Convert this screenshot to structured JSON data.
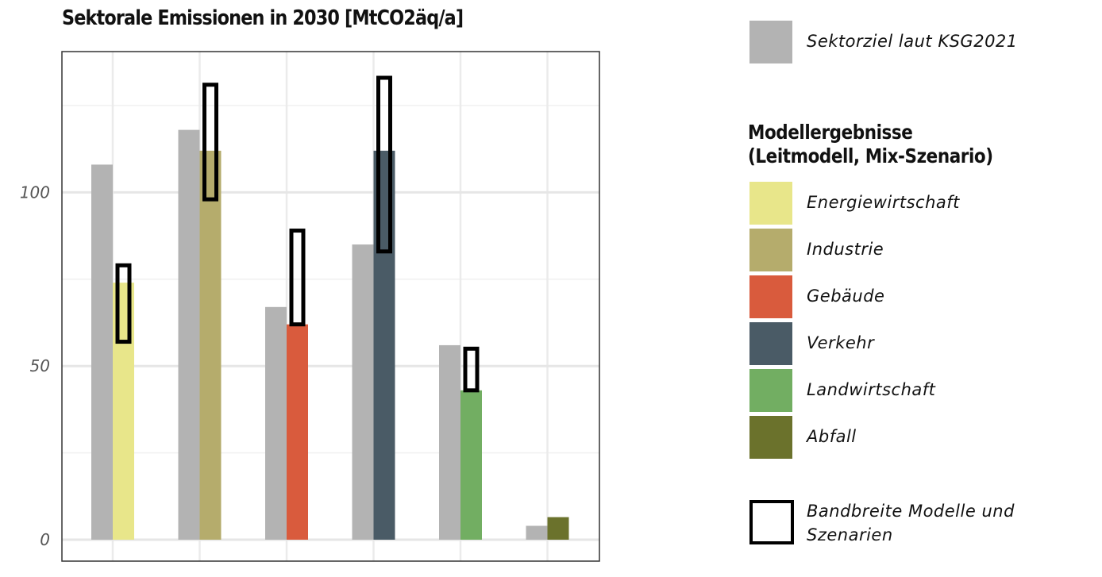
{
  "chart_data": {
    "type": "bar",
    "title": "Sektorale Emissionen in 2030 [MtCO2äq/a]",
    "xlabel": "",
    "ylabel": "",
    "ylim": [
      0,
      130
    ],
    "yticks": [
      0,
      50,
      100
    ],
    "grid": true,
    "legend_position": "right",
    "categories": [
      "Energiewirtschaft",
      "Industrie",
      "Gebäude",
      "Verkehr",
      "Landwirtschaft",
      "Abfall"
    ],
    "colors": [
      "#e8e68a",
      "#b5ac6c",
      "#d95b3d",
      "#4a5b66",
      "#72ae62",
      "#6b722c"
    ],
    "target_color": "#b3b3b3",
    "series": [
      {
        "name": "Sektorziel laut KSG2021",
        "values": [
          108,
          118,
          67,
          85,
          56,
          4
        ]
      },
      {
        "name": "Modellergebnisse (Leitmodell, Mix-Szenario)",
        "values": [
          74,
          112,
          62,
          112,
          43,
          6.5
        ]
      }
    ],
    "ranges": [
      {
        "category": "Energiewirtschaft",
        "low": 57,
        "high": 79
      },
      {
        "category": "Industrie",
        "low": 98,
        "high": 131
      },
      {
        "category": "Gebäude",
        "low": 62,
        "high": 89
      },
      {
        "category": "Verkehr",
        "low": 83,
        "high": 133
      },
      {
        "category": "Landwirtschaft",
        "low": 43,
        "high": 55
      }
    ]
  },
  "legend": {
    "target_label": "Sektorziel laut KSG2021",
    "model_title_line1": "Modellergebnisse",
    "model_title_line2": "(Leitmodell, Mix-Szenario)",
    "range_label_line1": "Bandbreite Modelle und",
    "range_label_line2": "Szenarien"
  }
}
